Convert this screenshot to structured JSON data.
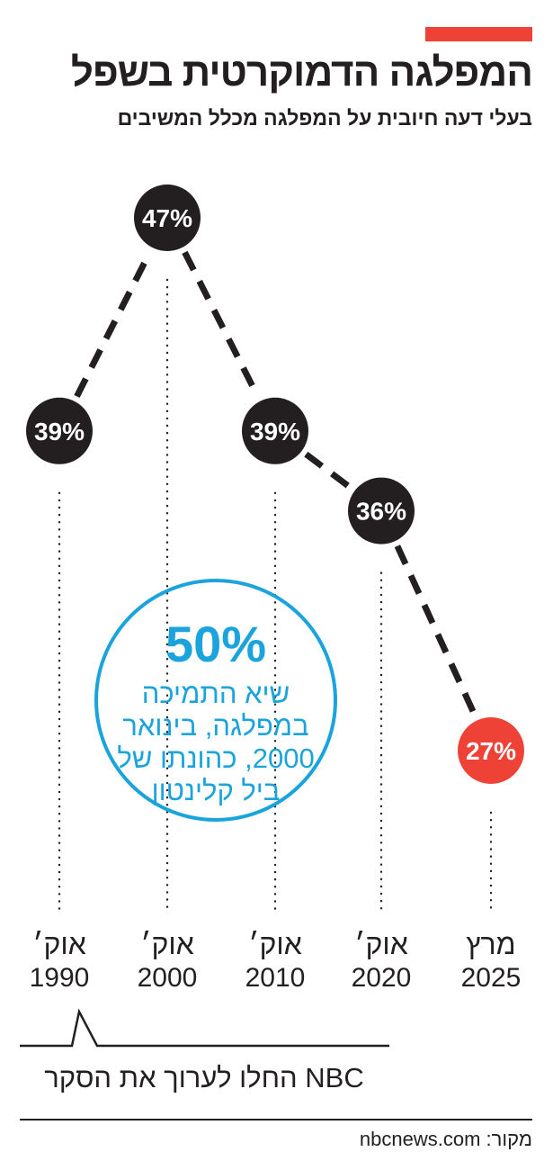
{
  "header": {
    "title": "המפלגה הדמוקרטית בשפל",
    "subtitle": "בעלי דעה חיובית על המפלגה מכלל המשיבים"
  },
  "colors": {
    "accent": "#ee4236",
    "marker": "#231f20",
    "highlight": "#ee4236",
    "callout": "#1ba3dc"
  },
  "chart_data": {
    "type": "line",
    "title": "המפלגה הדמוקרטית בשפל",
    "ylabel": "",
    "xlabel": "",
    "unit": "%",
    "ylim": [
      20,
      50
    ],
    "grid": false,
    "x_categories": [
      {
        "month": "אוק׳",
        "year": "1990"
      },
      {
        "month": "אוק׳",
        "year": "2000"
      },
      {
        "month": "אוק׳",
        "year": "2010"
      },
      {
        "month": "אוק׳",
        "year": "2020"
      },
      {
        "month": "מרץ",
        "year": "2025"
      }
    ],
    "series": [
      {
        "points": [
          {
            "x": "1990-10",
            "y": 39,
            "label": "39%"
          },
          {
            "x": "2000-10",
            "y": 47,
            "label": "47%"
          },
          {
            "x": "2010-10",
            "y": 39,
            "label": "39%"
          },
          {
            "x": "2020-10",
            "y": 36,
            "label": "36%"
          },
          {
            "x": "2025-03",
            "y": 27,
            "label": "27%"
          }
        ]
      }
    ],
    "highlight_last": true
  },
  "callout": {
    "value": "50%",
    "text": "שיא התמיכה במפלגה, בינואר 2000, כהונתו של ביל קלינטון"
  },
  "note": {
    "text": "NBC החלו לערוך את הסקר"
  },
  "source": {
    "text": "מקור: nbcnews.com"
  }
}
